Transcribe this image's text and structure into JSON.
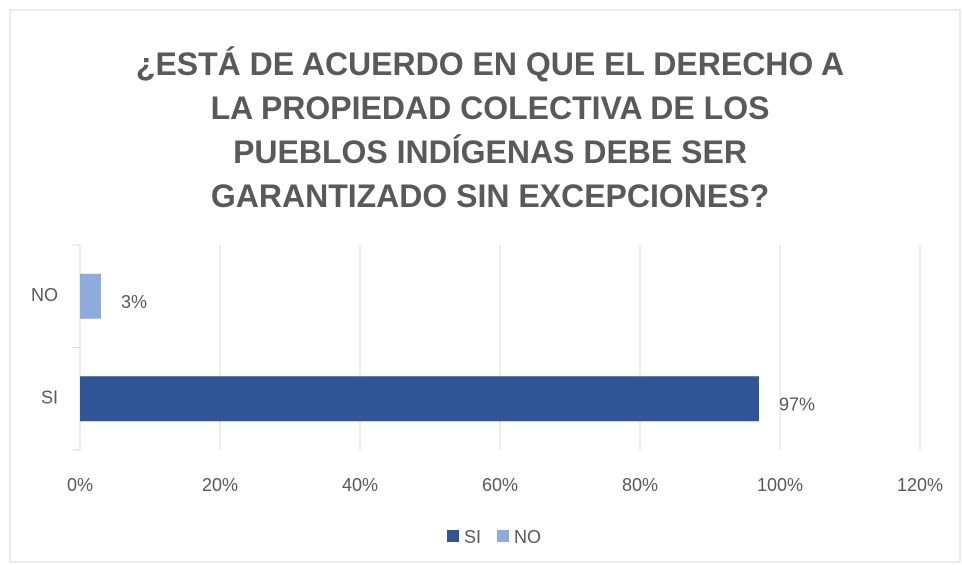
{
  "chart_data": {
    "type": "bar",
    "orientation": "horizontal",
    "title": "¿ESTÁ DE ACUERDO EN QUE EL DERECHO A LA PROPIEDAD COLECTIVA DE LOS PUEBLOS INDÍGENAS DEBE SER GARANTIZADO SIN EXCEPCIONES?",
    "categories": [
      "SI",
      "NO"
    ],
    "series": [
      {
        "name": "SI",
        "color": "#2f5597",
        "values": [
          97,
          null
        ],
        "value_labels": [
          "97%",
          null
        ]
      },
      {
        "name": "NO",
        "color": "#8faadc",
        "values": [
          null,
          3
        ],
        "value_labels": [
          null,
          "3%"
        ]
      }
    ],
    "xlim": [
      0,
      120
    ],
    "xticks": [
      {
        "value": 0,
        "label": "0%"
      },
      {
        "value": 20,
        "label": "20%"
      },
      {
        "value": 40,
        "label": "40%"
      },
      {
        "value": 60,
        "label": "60%"
      },
      {
        "value": 80,
        "label": "80%"
      },
      {
        "value": 100,
        "label": "100%"
      },
      {
        "value": 120,
        "label": "120%"
      }
    ],
    "grid": true,
    "legend": "bottom"
  }
}
